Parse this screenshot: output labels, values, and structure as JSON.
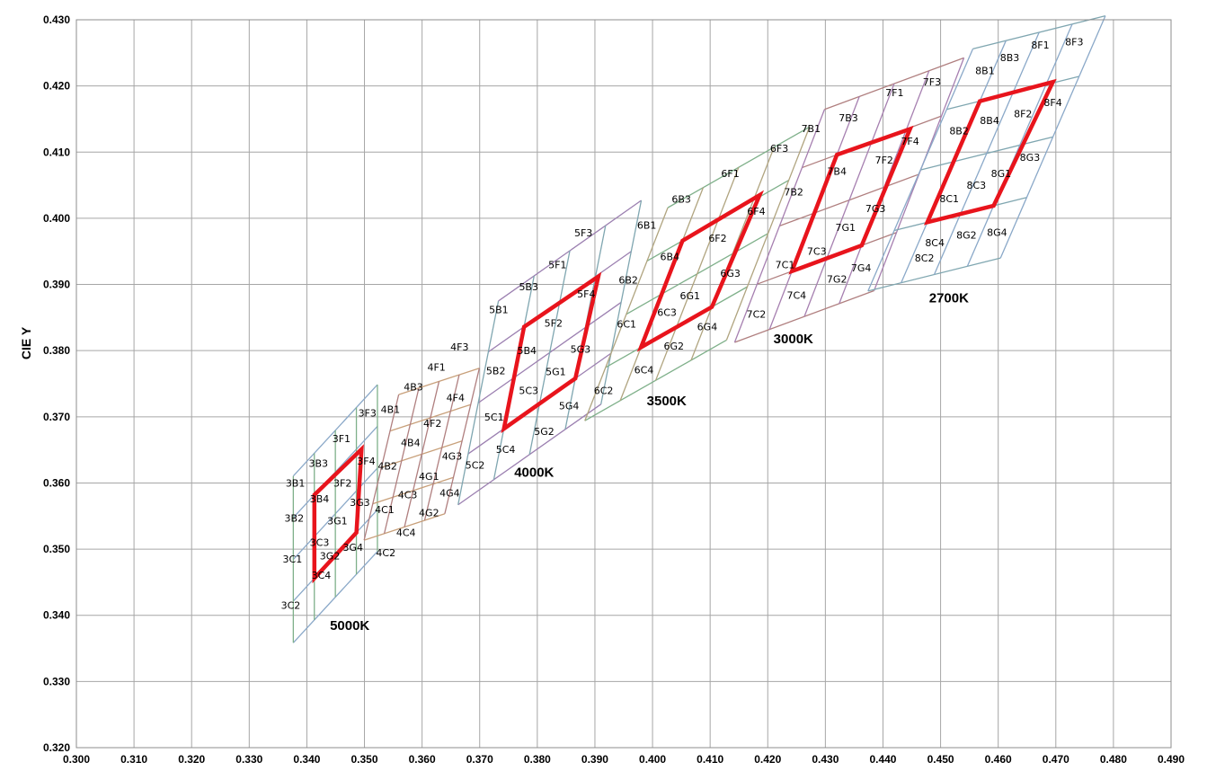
{
  "chart_data": {
    "type": "scatter",
    "title": "",
    "xlabel": "",
    "ylabel": "CIE Y",
    "xlim": [
      0.3,
      0.49
    ],
    "ylim": [
      0.32,
      0.43
    ],
    "xticks": [
      "0.300",
      "0.310",
      "0.320",
      "0.330",
      "0.340",
      "0.350",
      "0.360",
      "0.370",
      "0.380",
      "0.390",
      "0.400",
      "0.410",
      "0.420",
      "0.430",
      "0.440",
      "0.450",
      "0.460",
      "0.470",
      "0.480",
      "0.490"
    ],
    "yticks": [
      "0.320",
      "0.330",
      "0.340",
      "0.350",
      "0.360",
      "0.370",
      "0.380",
      "0.390",
      "0.400",
      "0.410",
      "0.420",
      "0.430"
    ],
    "grid": true,
    "colors": {
      "bin_outline": "#6b8fb5",
      "center_outline": "#e8141c",
      "grid": "#a6a6a6"
    },
    "groups": [
      {
        "cct": "5000K",
        "label_at": [
          0.344,
          0.3385
        ],
        "center_quad": [
          [
            0.3413,
            0.3456
          ],
          [
            0.3486,
            0.3525
          ],
          [
            0.3495,
            0.3651
          ],
          [
            0.3413,
            0.3582
          ]
        ],
        "bins": [
          {
            "label": "3C2",
            "at": [
              0.3372,
              0.3415
            ]
          },
          {
            "label": "3C1",
            "at": [
              0.3375,
              0.3485
            ]
          },
          {
            "label": "3C4",
            "at": [
              0.3425,
              0.3461
            ]
          },
          {
            "label": "3G2",
            "at": [
              0.344,
              0.349
            ]
          },
          {
            "label": "3C3",
            "at": [
              0.3422,
              0.351
            ]
          },
          {
            "label": "3G4",
            "at": [
              0.348,
              0.3503
            ]
          },
          {
            "label": "3B2",
            "at": [
              0.3378,
              0.3547
            ]
          },
          {
            "label": "3G1",
            "at": [
              0.3453,
              0.3543
            ]
          },
          {
            "label": "3B4",
            "at": [
              0.3422,
              0.3576
            ]
          },
          {
            "label": "3G3",
            "at": [
              0.3492,
              0.3571
            ]
          },
          {
            "label": "3F2",
            "at": [
              0.3462,
              0.36
            ]
          },
          {
            "label": "3B1",
            "at": [
              0.338,
              0.36
            ]
          },
          {
            "label": "3B3",
            "at": [
              0.342,
              0.363
            ]
          },
          {
            "label": "3F4",
            "at": [
              0.3503,
              0.3633
            ]
          },
          {
            "label": "3F1",
            "at": [
              0.346,
              0.3667
            ]
          },
          {
            "label": "3F3",
            "at": [
              0.3505,
              0.3706
            ]
          }
        ]
      },
      {
        "cct": "",
        "label_at": null,
        "center_quad": null,
        "bins": [
          {
            "label": "4C2",
            "at": [
              0.3537,
              0.3495
            ]
          },
          {
            "label": "4C4",
            "at": [
              0.3572,
              0.3525
            ]
          },
          {
            "label": "4C1",
            "at": [
              0.3535,
              0.356
            ]
          },
          {
            "label": "4G2",
            "at": [
              0.3612,
              0.3555
            ]
          },
          {
            "label": "4C3",
            "at": [
              0.3575,
              0.3582
            ]
          },
          {
            "label": "4G4",
            "at": [
              0.3648,
              0.3585
            ]
          },
          {
            "label": "4G1",
            "at": [
              0.3612,
              0.361
            ]
          },
          {
            "label": "4B2",
            "at": [
              0.354,
              0.3626
            ]
          },
          {
            "label": "4G3",
            "at": [
              0.3652,
              0.3641
            ]
          },
          {
            "label": "4B4",
            "at": [
              0.358,
              0.3661
            ]
          },
          {
            "label": "4F2",
            "at": [
              0.3618,
              0.369
            ]
          },
          {
            "label": "4B1",
            "at": [
              0.3545,
              0.3711
            ]
          },
          {
            "label": "4F4",
            "at": [
              0.3658,
              0.3729
            ]
          },
          {
            "label": "4B3",
            "at": [
              0.3585,
              0.3745
            ]
          },
          {
            "label": "4F1",
            "at": [
              0.3625,
              0.3775
            ]
          },
          {
            "label": "4F3",
            "at": [
              0.3665,
              0.3806
            ]
          }
        ]
      },
      {
        "cct": "4000K",
        "label_at": [
          0.376,
          0.3616
        ],
        "center_quad": [
          [
            0.3742,
            0.3682
          ],
          [
            0.3866,
            0.3758
          ],
          [
            0.3906,
            0.3912
          ],
          [
            0.3777,
            0.3836
          ]
        ],
        "bins": [
          {
            "label": "5C2",
            "at": [
              0.3692,
              0.3627
            ]
          },
          {
            "label": "5C4",
            "at": [
              0.3745,
              0.3651
            ]
          },
          {
            "label": "5G2",
            "at": [
              0.3812,
              0.3678
            ]
          },
          {
            "label": "5C1",
            "at": [
              0.3725,
              0.37
            ]
          },
          {
            "label": "5G4",
            "at": [
              0.3855,
              0.3717
            ]
          },
          {
            "label": "5C3",
            "at": [
              0.3785,
              0.374
            ]
          },
          {
            "label": "5G1",
            "at": [
              0.3832,
              0.3768
            ]
          },
          {
            "label": "5B2",
            "at": [
              0.3728,
              0.377
            ]
          },
          {
            "label": "5G3",
            "at": [
              0.3875,
              0.3802
            ]
          },
          {
            "label": "5B4",
            "at": [
              0.3782,
              0.38
            ]
          },
          {
            "label": "5F2",
            "at": [
              0.3828,
              0.3842
            ]
          },
          {
            "label": "5B1",
            "at": [
              0.3733,
              0.3862
            ]
          },
          {
            "label": "5F4",
            "at": [
              0.3885,
              0.3886
            ]
          },
          {
            "label": "5B3",
            "at": [
              0.3785,
              0.3897
            ]
          },
          {
            "label": "5F1",
            "at": [
              0.3835,
              0.393
            ]
          },
          {
            "label": "5F3",
            "at": [
              0.388,
              0.3978
            ]
          }
        ]
      },
      {
        "cct": "3500K",
        "label_at": [
          0.399,
          0.3724
        ],
        "center_quad": [
          [
            0.398,
            0.3805
          ],
          [
            0.4103,
            0.3866
          ],
          [
            0.4186,
            0.4035
          ],
          [
            0.4052,
            0.3966
          ]
        ],
        "bins": [
          {
            "label": "6C2",
            "at": [
              0.3915,
              0.374
            ]
          },
          {
            "label": "6C4",
            "at": [
              0.3985,
              0.3771
            ]
          },
          {
            "label": "6G2",
            "at": [
              0.4037,
              0.3807
            ]
          },
          {
            "label": "6C1",
            "at": [
              0.3955,
              0.384
            ]
          },
          {
            "label": "6G4",
            "at": [
              0.4095,
              0.3836
            ]
          },
          {
            "label": "6C3",
            "at": [
              0.4025,
              0.3858
            ]
          },
          {
            "label": "6G1",
            "at": [
              0.4065,
              0.3883
            ]
          },
          {
            "label": "6B2",
            "at": [
              0.3958,
              0.3907
            ]
          },
          {
            "label": "6G3",
            "at": [
              0.4135,
              0.3917
            ]
          },
          {
            "label": "6B4",
            "at": [
              0.403,
              0.3942
            ]
          },
          {
            "label": "6F2",
            "at": [
              0.4113,
              0.397
            ]
          },
          {
            "label": "6B1",
            "at": [
              0.399,
              0.399
            ]
          },
          {
            "label": "6F4",
            "at": [
              0.418,
              0.4011
            ]
          },
          {
            "label": "6B3",
            "at": [
              0.405,
              0.4029
            ]
          },
          {
            "label": "6F1",
            "at": [
              0.4135,
              0.4068
            ]
          },
          {
            "label": "6F3",
            "at": [
              0.422,
              0.4106
            ]
          }
        ]
      },
      {
        "cct": "3000K",
        "label_at": [
          0.421,
          0.3818
        ],
        "center_quad": [
          [
            0.4242,
            0.392
          ],
          [
            0.4363,
            0.3959
          ],
          [
            0.4447,
            0.4135
          ],
          [
            0.432,
            0.4096
          ]
        ],
        "bins": [
          {
            "label": "7C2",
            "at": [
              0.418,
              0.3855
            ]
          },
          {
            "label": "7C4",
            "at": [
              0.425,
              0.3884
            ]
          },
          {
            "label": "7G2",
            "at": [
              0.432,
              0.3908
            ]
          },
          {
            "label": "7C1",
            "at": [
              0.423,
              0.393
            ]
          },
          {
            "label": "7G4",
            "at": [
              0.4362,
              0.3925
            ]
          },
          {
            "label": "7C3",
            "at": [
              0.4285,
              0.395
            ]
          },
          {
            "label": "7G1",
            "at": [
              0.4335,
              0.3986
            ]
          },
          {
            "label": "7B2",
            "at": [
              0.4245,
              0.404
            ]
          },
          {
            "label": "7G3",
            "at": [
              0.4387,
              0.4015
            ]
          },
          {
            "label": "7B4",
            "at": [
              0.432,
              0.4071
            ]
          },
          {
            "label": "7F2",
            "at": [
              0.4402,
              0.4088
            ]
          },
          {
            "label": "7B1",
            "at": [
              0.4275,
              0.4136
            ]
          },
          {
            "label": "7F4",
            "at": [
              0.4447,
              0.4117
            ]
          },
          {
            "label": "7B3",
            "at": [
              0.434,
              0.4152
            ]
          },
          {
            "label": "7F1",
            "at": [
              0.442,
              0.419
            ]
          },
          {
            "label": "7F3",
            "at": [
              0.4485,
              0.4206
            ]
          }
        ]
      },
      {
        "cct": "2700K",
        "label_at": [
          0.448,
          0.388
        ],
        "center_quad": [
          [
            0.4477,
            0.3994
          ],
          [
            0.4592,
            0.4019
          ],
          [
            0.4695,
            0.4206
          ],
          [
            0.4568,
            0.4177
          ]
        ],
        "bins": [
          {
            "label": "8C2",
            "at": [
              0.4472,
              0.394
            ]
          },
          {
            "label": "8C4",
            "at": [
              0.449,
              0.3963
            ]
          },
          {
            "label": "8G2",
            "at": [
              0.4545,
              0.3975
            ]
          },
          {
            "label": "8G4",
            "at": [
              0.4598,
              0.3979
            ]
          },
          {
            "label": "8C1",
            "at": [
              0.4515,
              0.403
            ]
          },
          {
            "label": "8C3",
            "at": [
              0.4562,
              0.405
            ]
          },
          {
            "label": "8G1",
            "at": [
              0.4605,
              0.4068
            ]
          },
          {
            "label": "8G3",
            "at": [
              0.4655,
              0.4092
            ]
          },
          {
            "label": "8B2",
            "at": [
              0.4532,
              0.4132
            ]
          },
          {
            "label": "8B4",
            "at": [
              0.4585,
              0.4148
            ]
          },
          {
            "label": "8F2",
            "at": [
              0.4643,
              0.4158
            ]
          },
          {
            "label": "8F4",
            "at": [
              0.4695,
              0.4175
            ]
          },
          {
            "label": "8B1",
            "at": [
              0.4577,
              0.4223
            ]
          },
          {
            "label": "8B3",
            "at": [
              0.462,
              0.4243
            ]
          },
          {
            "label": "8F1",
            "at": [
              0.4673,
              0.4262
            ]
          },
          {
            "label": "8F3",
            "at": [
              0.4732,
              0.4267
            ]
          }
        ]
      }
    ]
  }
}
